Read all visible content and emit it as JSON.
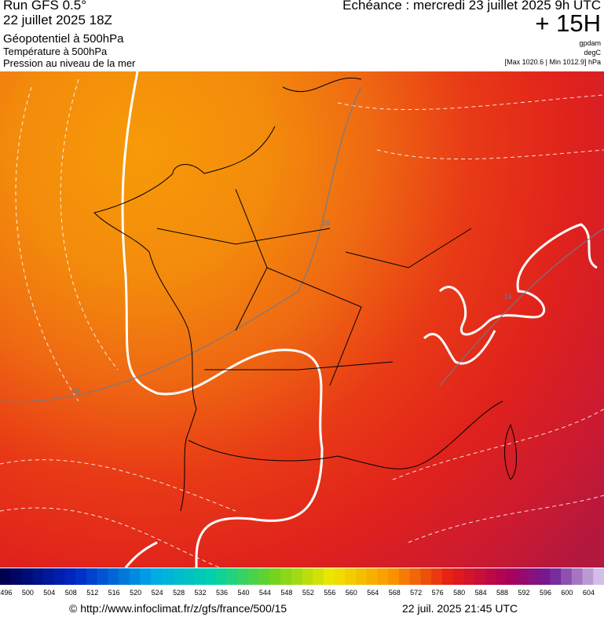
{
  "header": {
    "run": "Run GFS 0.5°",
    "run_date": "22 juillet 2025 18Z",
    "field_main": "Géopotentiel à 500hPa",
    "field_2": "Température à 500hPa",
    "field_3": "Pression au niveau de la mer",
    "valid_time": "Echéance : mercredi 23 juillet 2025 9h UTC",
    "lead": "+ 15H",
    "unit_1": "gpdam",
    "unit_2": "degC",
    "pressure_range": "[Max 1020.6 | Min 1012.9] hPa"
  },
  "map": {
    "contour_labels": [
      "16",
      "16",
      "16"
    ]
  },
  "colorbar": {
    "labels": [
      496,
      500,
      504,
      508,
      512,
      516,
      520,
      524,
      528,
      532,
      536,
      540,
      544,
      548,
      552,
      556,
      560,
      564,
      568,
      572,
      576,
      580,
      584,
      588,
      592,
      596,
      600,
      604
    ]
  },
  "footer": {
    "url": "© http://www.infoclimat.fr/z/gfs/france/500/15",
    "generated": "22 juil. 2025 21:45 UTC"
  }
}
